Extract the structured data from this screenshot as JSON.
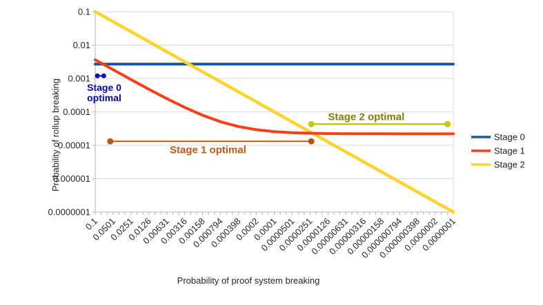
{
  "chart_data": {
    "type": "line",
    "title": "",
    "xlabel": "Probability of proof system breaking",
    "ylabel": "Probability of rollup breaking",
    "x_scale": "log",
    "y_scale": "log",
    "x_range": [
      0.1,
      1e-07
    ],
    "y_range": [
      1e-07,
      0.1
    ],
    "grid": "horizontal",
    "legend_position": "right",
    "x_tick_labels": [
      "0.1",
      "0.0501",
      "0.0251",
      "0.0126",
      "0.00631",
      "0.00316",
      "0.00158",
      "0.000794",
      "0.000398",
      "0.0002",
      "0.0001",
      "0.0000501",
      "0.0000251",
      "0.0000126",
      "0.00000631",
      "0.00000316",
      "0.00000158",
      "0.000000794",
      "0.000000398",
      "0.0000002",
      "0.0000001"
    ],
    "y_tick_labels": [
      "0.1",
      "0.01",
      "0.001",
      "0.0001",
      "0.00001",
      "0.000001",
      "0.0000001"
    ],
    "axis_color": "#b3b3b3",
    "grid_color": "#d9d9d9",
    "text_color": "#262626",
    "series": [
      {
        "name": "Stage 0",
        "color": "#1b5a99",
        "width": 4,
        "points": [
          [
            0.1,
            0.0027
          ],
          [
            1e-07,
            0.0027
          ]
        ]
      },
      {
        "name": "Stage 1",
        "color": "#ff3d17",
        "width": 4,
        "points": [
          [
            0.1,
            0.003622
          ],
          [
            0.0501,
            0.001826
          ],
          [
            0.0251,
            0.0009256
          ],
          [
            0.0126,
            0.0004756
          ],
          [
            0.00631,
            0.0002492
          ],
          [
            0.00316,
            0.0001358
          ],
          [
            0.00158,
            7.888e-05
          ],
          [
            0.000794,
            5.058e-05
          ],
          [
            0.000398,
            3.633e-05
          ],
          [
            0.0002,
            2.92e-05
          ],
          [
            0.0001,
            2.56e-05
          ],
          [
            5.01e-05,
            2.38e-05
          ],
          [
            2.51e-05,
            2.29e-05
          ],
          [
            1.26e-05,
            2.245e-05
          ],
          [
            6.31e-06,
            2.223e-05
          ],
          [
            3.16e-06,
            2.211e-05
          ],
          [
            1.58e-06,
            2.206e-05
          ],
          [
            7.94e-07,
            2.203e-05
          ],
          [
            3.98e-07,
            2.201e-05
          ],
          [
            2e-07,
            2.201e-05
          ],
          [
            1e-07,
            2.2e-05
          ]
        ]
      },
      {
        "name": "Stage 2",
        "color": "#ffd428",
        "width": 4.5,
        "points": [
          [
            0.1,
            0.1
          ],
          [
            1e-07,
            1e-07
          ]
        ]
      }
    ],
    "annotations": [
      {
        "id": "stage-0-optimal",
        "label_lines": [
          "Stage 0",
          "optimal"
        ],
        "text_color": "#0000cc",
        "line_color": "#0000cc",
        "dot_color": "#0f0fd0",
        "x1": 0.092,
        "x2": 0.072,
        "y": 0.0012,
        "label_pos": "below-left",
        "font_size": 14,
        "dot_r": 3.5,
        "label_dx": 0
      },
      {
        "id": "stage-1-optimal",
        "label_lines": [
          "Stage 1 optimal"
        ],
        "text_color": "#c5570e",
        "line_color": "#c5570e",
        "dot_color": "#bc5310",
        "x1": 0.056,
        "x2": 2.4e-05,
        "y": 1.31e-05,
        "label_pos": "below",
        "font_size": 15,
        "dot_r": 4.5,
        "label_dx": -4
      },
      {
        "id": "stage-2-optimal",
        "label_lines": [
          "Stage 2 optimal"
        ],
        "text_color": "#808000",
        "line_color": "#b5b500",
        "dot_color": "#c6c800",
        "x1": 2.4e-05,
        "x2": 1.25e-07,
        "y": 4.3e-05,
        "label_pos": "above",
        "font_size": 15,
        "dot_r": 4.5,
        "label_dx": -19
      }
    ]
  }
}
